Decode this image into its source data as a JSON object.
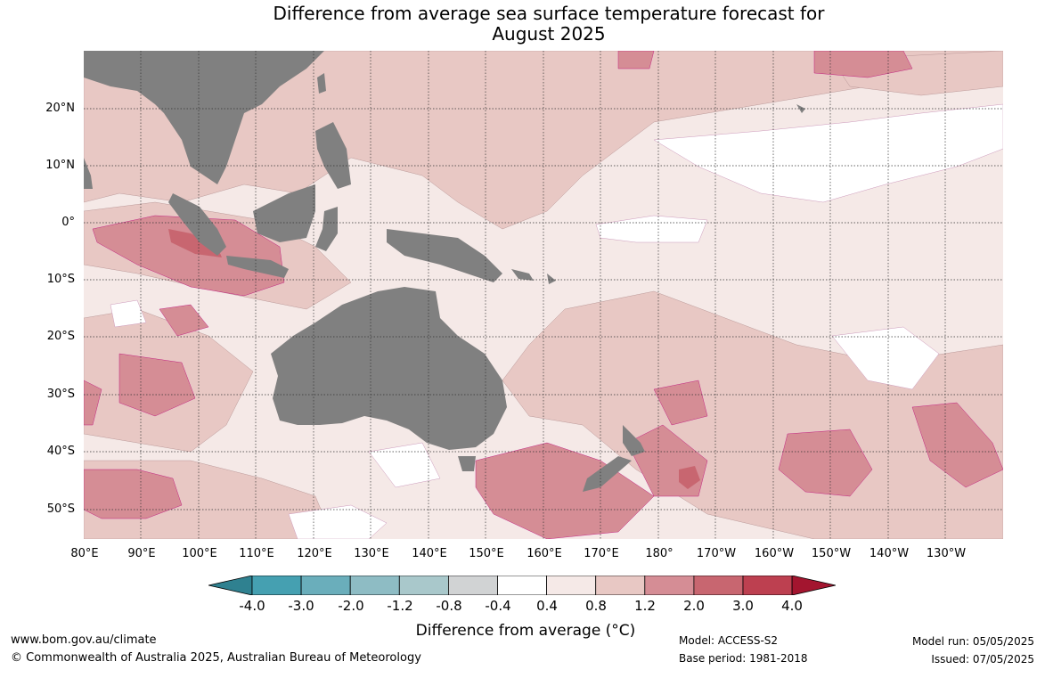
{
  "title": {
    "line1": "Difference from average sea surface temperature forecast for",
    "line2": "August 2025"
  },
  "latitude_labels": [
    "20°N",
    "10°N",
    "0°",
    "10°S",
    "20°S",
    "30°S",
    "40°S",
    "50°S"
  ],
  "longitude_labels": [
    "80°E",
    "90°E",
    "100°E",
    "110°E",
    "120°E",
    "130°E",
    "140°E",
    "150°E",
    "160°E",
    "170°E",
    "180°",
    "170°W",
    "160°W",
    "150°W",
    "140°W",
    "130°W"
  ],
  "colorbar": {
    "title": "Difference from average (°C)",
    "tick_labels": [
      "-4.0",
      "-3.0",
      "-2.0",
      "-1.2",
      "-0.8",
      "-0.4",
      "0.4",
      "0.8",
      "1.2",
      "2.0",
      "3.0",
      "4.0"
    ],
    "colors": [
      "#2f8190",
      "#45a0b1",
      "#6aaebb",
      "#8ebcc4",
      "#a9c8cb",
      "#d1d3d4",
      "#ffffff",
      "#f5e9e7",
      "#e8c8c4",
      "#d58d95",
      "#c86670",
      "#bd4050",
      "#a3152f"
    ]
  },
  "land_color": "#808080",
  "footer": {
    "website": "www.bom.gov.au/climate",
    "copyright": "© Commonwealth of Australia 2025, Australian Bureau of Meteorology",
    "model": "Model: ACCESS-S2",
    "base_period": "Base period: 1981-2018",
    "model_run": "Model run: 05/05/2025",
    "issued": "Issued: 07/05/2025"
  }
}
